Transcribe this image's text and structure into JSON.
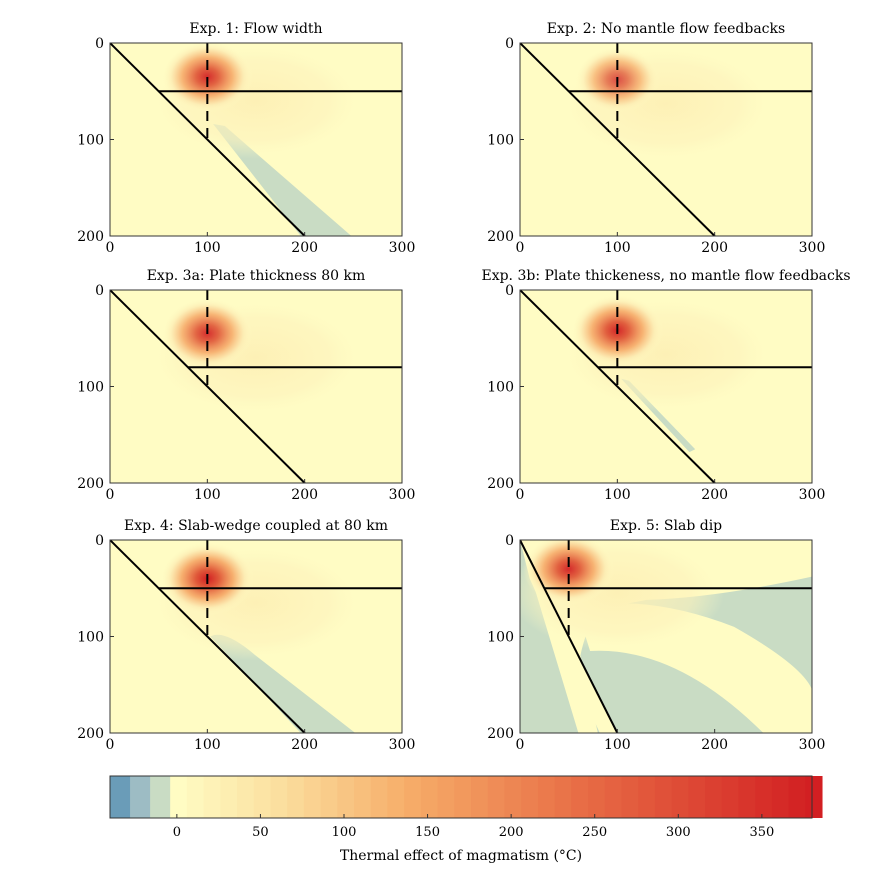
{
  "chart_data": {
    "type": "heatmap",
    "panels": [
      {
        "title": "Exp. 1: Flow width",
        "xlim": [
          0,
          300
        ],
        "ylim": [
          0,
          200
        ],
        "xticks": [
          "0",
          "100",
          "200",
          "300"
        ],
        "yticks": [
          "0",
          "100",
          "200"
        ],
        "plate_thickness_km": 50,
        "slab_start_x": 0,
        "slab_end_x": 200,
        "dashed_line_x": 100,
        "anomaly_center": [
          100,
          35
        ],
        "anomaly_peak_c": 310,
        "cold_zone": "narrow"
      },
      {
        "title": "Exp. 2: No mantle flow feedbacks",
        "xlim": [
          0,
          300
        ],
        "ylim": [
          0,
          200
        ],
        "xticks": [
          "0",
          "100",
          "200",
          "300"
        ],
        "yticks": [
          "0",
          "100",
          "200"
        ],
        "plate_thickness_km": 50,
        "slab_start_x": 0,
        "slab_end_x": 200,
        "dashed_line_x": 100,
        "anomaly_center": [
          100,
          38
        ],
        "anomaly_peak_c": 180,
        "cold_zone": "none"
      },
      {
        "title": "Exp. 3a: Plate thickness 80 km",
        "xlim": [
          0,
          300
        ],
        "ylim": [
          0,
          200
        ],
        "xticks": [
          "0",
          "100",
          "200",
          "300"
        ],
        "yticks": [
          "0",
          "100",
          "200"
        ],
        "plate_thickness_km": 80,
        "slab_start_x": 0,
        "slab_end_x": 200,
        "dashed_line_x": 100,
        "anomaly_center": [
          100,
          45
        ],
        "anomaly_peak_c": 300,
        "cold_zone": "none"
      },
      {
        "title": "Exp. 3b: Plate thickeness, no mantle flow feedbacks",
        "xlim": [
          0,
          300
        ],
        "ylim": [
          0,
          200
        ],
        "xticks": [
          "0",
          "100",
          "200",
          "300"
        ],
        "yticks": [
          "0",
          "100",
          "200"
        ],
        "plate_thickness_km": 80,
        "slab_start_x": 0,
        "slab_end_x": 200,
        "dashed_line_x": 100,
        "anomaly_center": [
          100,
          42
        ],
        "anomaly_peak_c": 330,
        "cold_zone": "small"
      },
      {
        "title": "Exp. 4: Slab-wedge coupled at 80 km",
        "xlim": [
          0,
          300
        ],
        "ylim": [
          0,
          200
        ],
        "xticks": [
          "0",
          "100",
          "200",
          "300"
        ],
        "yticks": [
          "0",
          "100",
          "200"
        ],
        "plate_thickness_km": 50,
        "slab_start_x": 0,
        "slab_end_x": 200,
        "dashed_line_x": 100,
        "anomaly_center": [
          100,
          40
        ],
        "anomaly_peak_c": 360,
        "cold_zone": "wide"
      },
      {
        "title": "Exp. 5: Slab dip",
        "xlim": [
          0,
          300
        ],
        "ylim": [
          0,
          200
        ],
        "xticks": [
          "0",
          "100",
          "200",
          "300"
        ],
        "yticks": [
          "0",
          "100",
          "200"
        ],
        "plate_thickness_km": 50,
        "slab_start_x": 0,
        "slab_end_x": 100,
        "dashed_line_x": 50,
        "anomaly_center": [
          50,
          30
        ],
        "anomaly_peak_c": 320,
        "cold_zone": "steep"
      }
    ],
    "colorbar": {
      "label": "Thermal effect of magmatism (°C)",
      "range": [
        -40,
        380
      ],
      "ticks": [
        "0",
        "50",
        "100",
        "150",
        "200",
        "250",
        "300",
        "350"
      ],
      "tick_values": [
        0,
        50,
        100,
        150,
        200,
        250,
        300,
        350
      ]
    },
    "colors": {
      "cold_strong": "#6a9cb8",
      "cold_mid": "#9dbcc4",
      "cold_light": "#c9dcc4",
      "zero": "#fffcc4",
      "hot_low": "#fce9b0",
      "hot_mid": "#f5a260",
      "hot_high": "#e05a3a",
      "hot_max": "#d21f22"
    }
  }
}
